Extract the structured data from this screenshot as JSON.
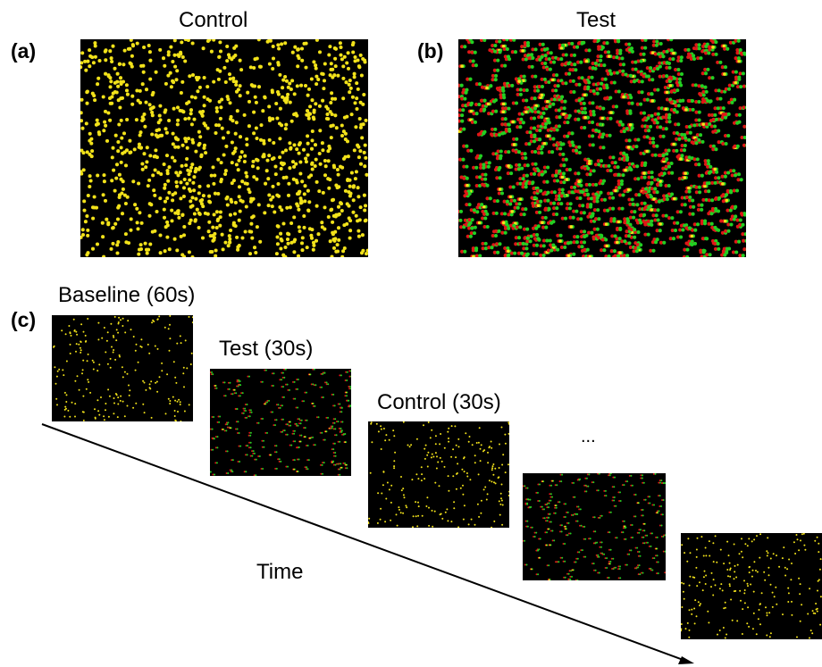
{
  "panels": {
    "a": {
      "letter": "(a)",
      "title": "Control"
    },
    "b": {
      "letter": "(b)",
      "title": "Test"
    },
    "c": {
      "letter": "(c)"
    }
  },
  "sequence": {
    "baseline_label": "Baseline (60s)",
    "test_label": "Test (30s)",
    "control_label": "Control (30s)",
    "ellipsis": "...",
    "time_label": "Time"
  },
  "colors": {
    "background": "#000000",
    "control_dot": "#f2e21a",
    "test_dot_red": "#e01616",
    "test_dot_green": "#22d022",
    "test_dot_yellow": "#f2e21a",
    "arrow": "#000000"
  }
}
